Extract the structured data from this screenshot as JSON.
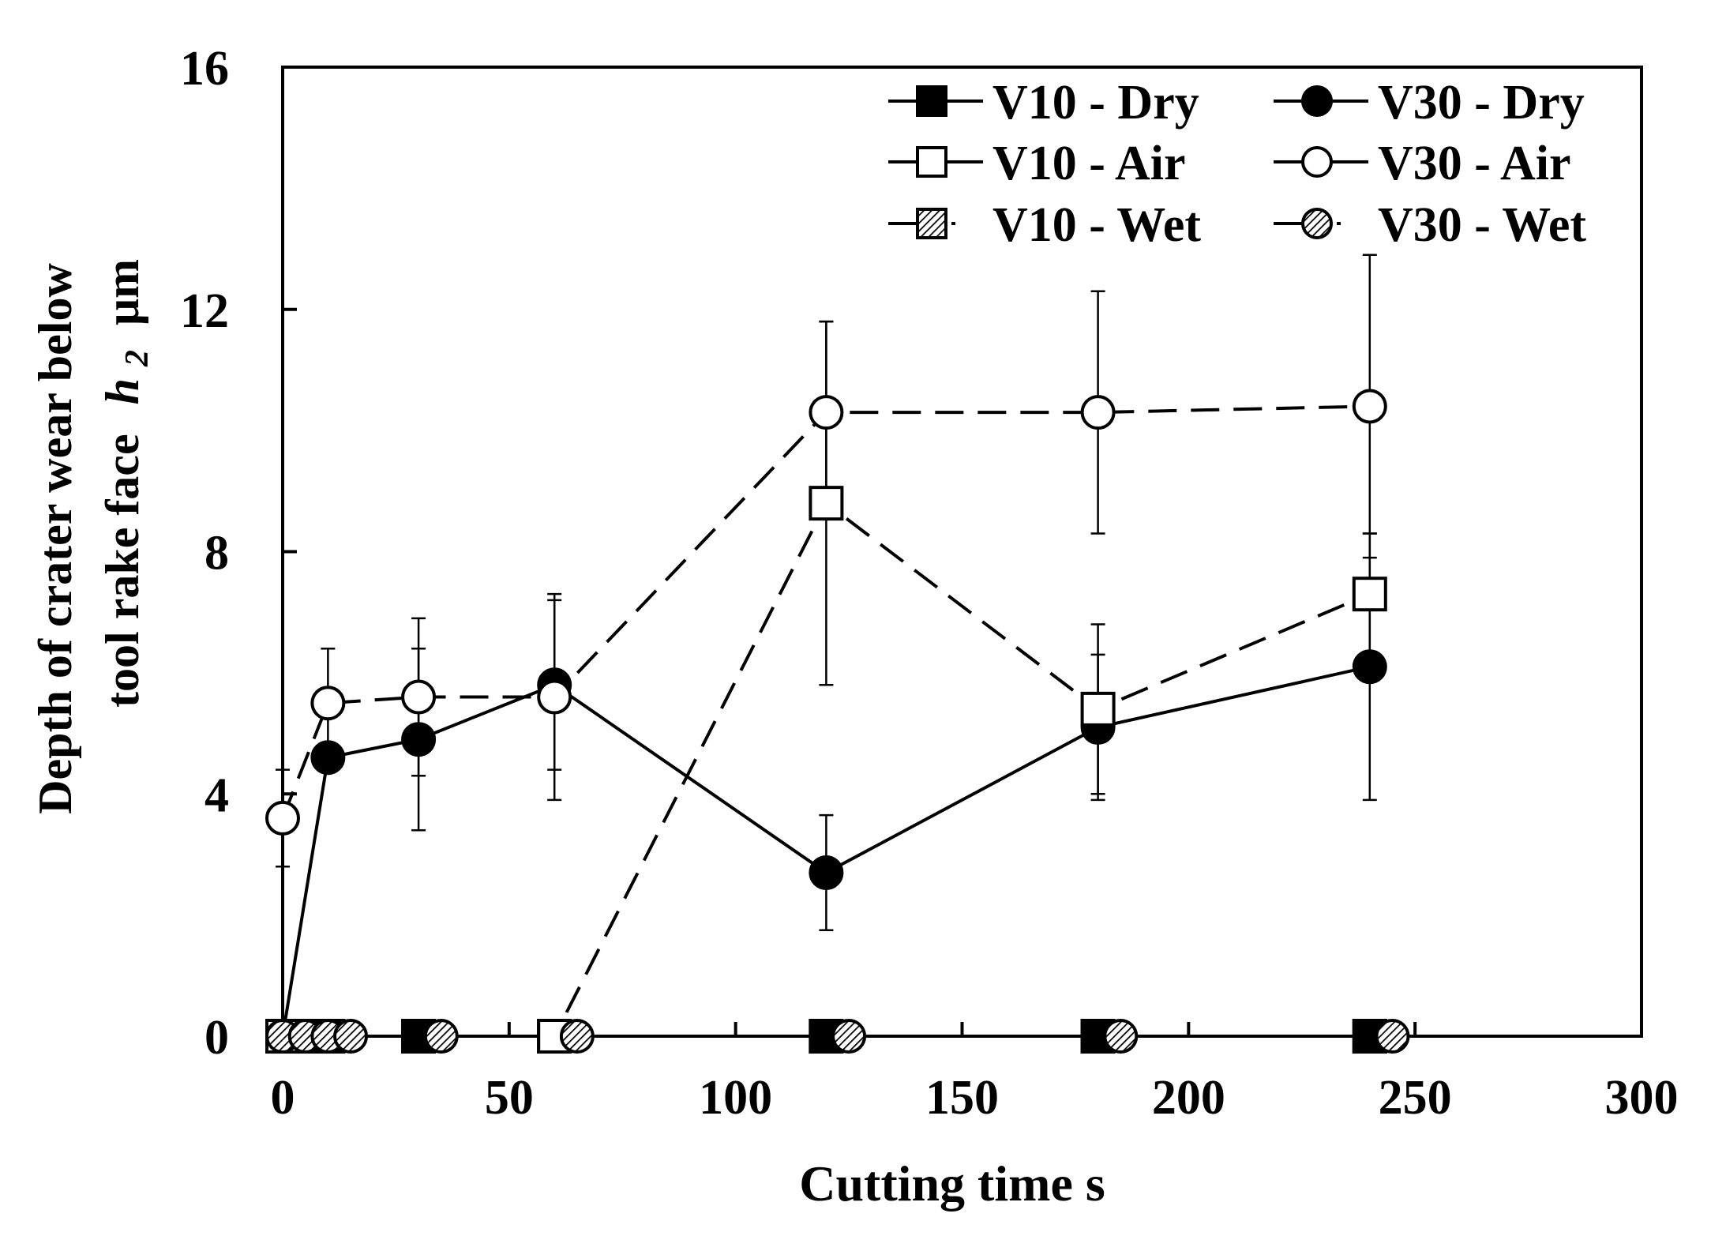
{
  "chart_data": {
    "type": "line",
    "xlabel": "Cutting time  s",
    "ylabel_line1": "Depth of crater wear below",
    "ylabel_line2": "tool rake face",
    "ylabel_var": "h",
    "ylabel_sub": "2",
    "ylabel_unit": "μm",
    "xlim": [
      0,
      300
    ],
    "ylim": [
      0,
      16
    ],
    "xticks": [
      0,
      50,
      100,
      150,
      200,
      250,
      300
    ],
    "yticks": [
      0,
      4,
      8,
      12,
      16
    ],
    "legend_position": "top-right",
    "series": [
      {
        "name": "V10 - Dry",
        "marker": "square",
        "fill": "filled",
        "dash": "solid",
        "x": [
          0,
          10,
          30,
          60,
          120,
          180,
          240
        ],
        "y": [
          0,
          0,
          0,
          0,
          0,
          0,
          0
        ],
        "err": [
          0,
          0,
          0,
          0,
          0,
          0,
          0
        ]
      },
      {
        "name": "V30 - Dry",
        "marker": "circle",
        "fill": "filled",
        "dash": "solid",
        "x": [
          0,
          10,
          30,
          60,
          120,
          180,
          240
        ],
        "y": [
          0,
          4.6,
          4.9,
          5.8,
          2.7,
          5.1,
          6.1
        ],
        "err": [
          0,
          0,
          1.5,
          1.4,
          0.95,
          1.2,
          2.2
        ]
      },
      {
        "name": "V10 - Air",
        "marker": "square",
        "fill": "open",
        "dash": "dashed",
        "x": [
          0,
          60,
          120,
          180,
          240
        ],
        "y": [
          0,
          0,
          8.8,
          5.4,
          7.3
        ],
        "err": [
          0,
          0,
          3.0,
          1.4,
          1.0
        ]
      },
      {
        "name": "V30 - Air",
        "marker": "circle",
        "fill": "open",
        "dash": "dashed",
        "x": [
          0,
          10,
          30,
          60,
          120,
          180,
          240
        ],
        "y": [
          3.6,
          5.5,
          5.6,
          5.6,
          10.3,
          10.3,
          10.4
        ],
        "err": [
          0.8,
          0.9,
          1.3,
          1.7,
          1.5,
          2.0,
          2.5
        ]
      },
      {
        "name": "V10 - Wet",
        "marker": "square",
        "fill": "hatched",
        "dash": "dashdot",
        "x": [
          0,
          5,
          10,
          30,
          60,
          120,
          180,
          240
        ],
        "y": [
          0,
          0,
          0,
          0,
          0,
          0,
          0,
          0
        ],
        "err": [
          0,
          0,
          0,
          0,
          0,
          0,
          0,
          0
        ]
      },
      {
        "name": "V30 - Wet",
        "marker": "circle",
        "fill": "hatched",
        "dash": "dashdot",
        "x": [
          0,
          5,
          10,
          15,
          35,
          65,
          125,
          185,
          245
        ],
        "y": [
          0,
          0,
          0,
          0,
          0,
          0,
          0,
          0,
          0
        ],
        "err": [
          0,
          0,
          0,
          0,
          0,
          0,
          0,
          0,
          0
        ]
      }
    ]
  }
}
